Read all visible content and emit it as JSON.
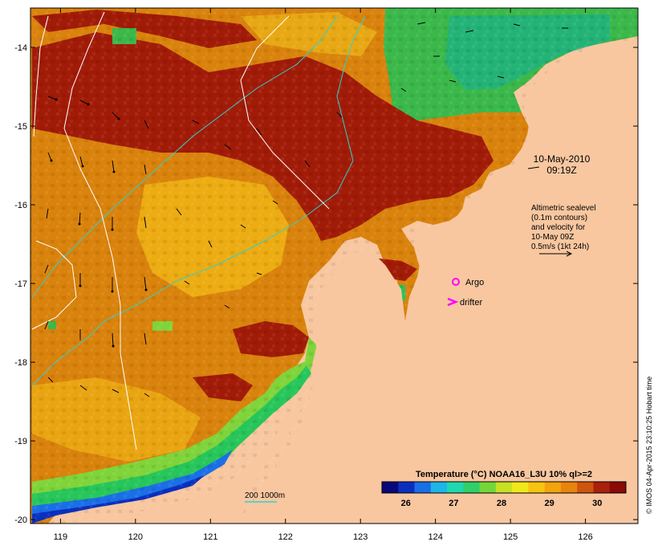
{
  "map": {
    "lon_ticks": [
      "119",
      "120",
      "121",
      "122",
      "123",
      "124",
      "125",
      "126"
    ],
    "lat_ticks": [
      "-14",
      "-15",
      "-16",
      "-17",
      "-18",
      "-19",
      "-20"
    ],
    "lon_range": [
      118.6,
      126.7
    ],
    "lat_range": [
      -20.05,
      -13.5
    ]
  },
  "annotations": {
    "date": "10-May-2010",
    "time": "09:19Z",
    "sealevel_lines": [
      "Altimetric sealevel",
      "(0.1m contours)",
      "and velocity for",
      "10-May 09Z",
      "0.5m/s (1kt 24h)"
    ],
    "argo_label": "Argo",
    "drifter_label": "drifter",
    "isobath_label": "200  1000m",
    "credit": "© IMOS 04-Apr-2015 23:10:25 Hobart time"
  },
  "colorbar": {
    "title": "Temperature (°C) NOAA16_L3U 10% ql>=2",
    "ticks": [
      "26",
      "27",
      "28",
      "29",
      "30"
    ],
    "colors": [
      "#08087a",
      "#0a2fbf",
      "#1a6fe6",
      "#1fb5e8",
      "#1fd8b0",
      "#2fd06a",
      "#74d63a",
      "#c8e024",
      "#f0e81a",
      "#f7c410",
      "#f2a30d",
      "#e8840d",
      "#cf5410",
      "#a9200c",
      "#8a0a06"
    ]
  },
  "colors": {
    "land": "#f8c7a0",
    "hot": "#a11b07",
    "warm": "#d9820c",
    "mid": "#efb414",
    "cool_green": "#27c65a",
    "cold_blue": "#1b3fcf",
    "magenta": "#ff00ff"
  }
}
